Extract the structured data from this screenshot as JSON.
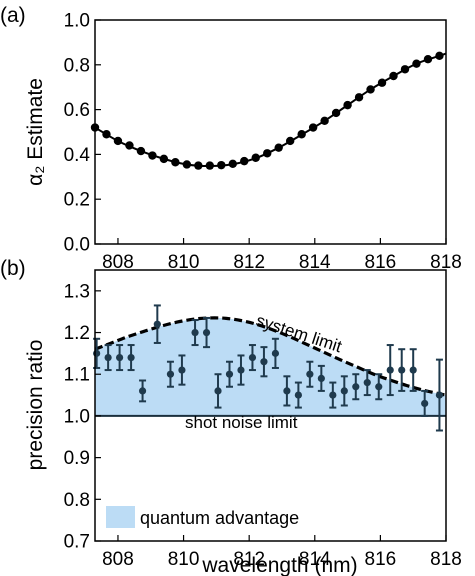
{
  "chart_data": [
    {
      "panel": "(a)",
      "type": "line",
      "ylabel": "α₂ Estimate",
      "xlim": [
        807.3,
        818.0
      ],
      "ylim": [
        0.0,
        1.0
      ],
      "yticks": [
        0.0,
        0.2,
        0.4,
        0.6,
        0.8,
        1.0
      ],
      "ytick_labels": [
        "0.0",
        "0.2",
        "0.4",
        "0.6",
        "0.8",
        "1.0"
      ],
      "xticks": [
        808,
        810,
        812,
        814,
        816,
        818
      ],
      "xtick_labels": [
        "808",
        "810",
        "812",
        "814",
        "816",
        "818"
      ],
      "grid": false,
      "series": [
        {
          "kind": "points",
          "x": [
            807.3,
            807.65,
            808.0,
            808.35,
            808.7,
            809.05,
            809.4,
            809.75,
            810.1,
            810.45,
            810.8,
            811.15,
            811.5,
            811.85,
            812.2,
            812.55,
            812.9,
            813.25,
            813.6,
            813.95,
            814.3,
            814.65,
            815.0,
            815.35,
            815.7,
            816.05,
            816.4,
            816.75,
            817.1,
            817.45,
            817.8
          ],
          "y": [
            0.52,
            0.49,
            0.46,
            0.44,
            0.415,
            0.395,
            0.38,
            0.365,
            0.355,
            0.35,
            0.35,
            0.352,
            0.358,
            0.37,
            0.385,
            0.405,
            0.43,
            0.46,
            0.49,
            0.52,
            0.55,
            0.585,
            0.62,
            0.655,
            0.69,
            0.72,
            0.75,
            0.78,
            0.805,
            0.825,
            0.84
          ]
        },
        {
          "kind": "fit-curve",
          "x": [
            807.3,
            808.0,
            808.7,
            809.4,
            810.1,
            810.8,
            811.5,
            812.2,
            812.9,
            813.6,
            814.3,
            815.0,
            815.7,
            816.4,
            817.1,
            817.8,
            818.0
          ],
          "y": [
            0.52,
            0.46,
            0.415,
            0.38,
            0.355,
            0.348,
            0.356,
            0.383,
            0.43,
            0.488,
            0.55,
            0.62,
            0.69,
            0.75,
            0.805,
            0.84,
            0.85
          ]
        }
      ]
    },
    {
      "panel": "(b)",
      "type": "scatter",
      "xlabel": "wavelength (nm)",
      "ylabel": "precision ratio",
      "xlim": [
        807.3,
        818.0
      ],
      "ylim": [
        0.7,
        1.35
      ],
      "yticks": [
        0.7,
        0.8,
        0.9,
        1.0,
        1.1,
        1.2,
        1.3
      ],
      "ytick_labels": [
        "0.7",
        "0.8",
        "0.9",
        "1.0",
        "1.1",
        "1.2",
        "1.3"
      ],
      "xticks": [
        808,
        810,
        812,
        814,
        816,
        818
      ],
      "xtick_labels": [
        "808",
        "810",
        "812",
        "814",
        "816",
        "818"
      ],
      "grid": false,
      "system_limit": {
        "label": "system limit",
        "x": [
          807.3,
          807.8,
          808.3,
          808.8,
          809.3,
          809.8,
          810.3,
          810.8,
          811.3,
          811.8,
          812.3,
          812.8,
          813.3,
          813.8,
          814.3,
          814.8,
          815.3,
          815.8,
          816.3,
          816.8,
          817.3,
          817.8,
          818.0
        ],
        "y": [
          1.16,
          1.175,
          1.19,
          1.203,
          1.215,
          1.225,
          1.232,
          1.235,
          1.234,
          1.228,
          1.218,
          1.204,
          1.188,
          1.17,
          1.152,
          1.134,
          1.117,
          1.1,
          1.086,
          1.073,
          1.062,
          1.053,
          1.05
        ]
      },
      "shot_noise_limit": {
        "label": "shot noise limit",
        "y": 1.0
      },
      "legend": {
        "label": "quantum advantage",
        "color": "#bcdcf5",
        "position": "lower-left"
      },
      "measured": {
        "color": "#1f3a4d",
        "x": [
          807.35,
          807.7,
          808.05,
          808.4,
          808.75,
          809.2,
          809.6,
          809.95,
          810.35,
          810.7,
          811.05,
          811.4,
          811.75,
          812.1,
          812.45,
          812.8,
          813.15,
          813.5,
          813.85,
          814.2,
          814.55,
          814.9,
          815.25,
          815.6,
          815.95,
          816.3,
          816.65,
          817.0,
          817.35,
          817.8
        ],
        "y": [
          1.15,
          1.14,
          1.14,
          1.14,
          1.06,
          1.22,
          1.1,
          1.11,
          1.2,
          1.2,
          1.06,
          1.1,
          1.11,
          1.14,
          1.13,
          1.15,
          1.06,
          1.05,
          1.1,
          1.09,
          1.05,
          1.06,
          1.07,
          1.08,
          1.07,
          1.11,
          1.11,
          1.11,
          1.03,
          1.05
        ],
        "err": [
          0.035,
          0.03,
          0.03,
          0.03,
          0.025,
          0.045,
          0.03,
          0.035,
          0.03,
          0.035,
          0.04,
          0.03,
          0.035,
          0.03,
          0.035,
          0.035,
          0.035,
          0.03,
          0.03,
          0.03,
          0.03,
          0.035,
          0.03,
          0.03,
          0.03,
          0.06,
          0.05,
          0.05,
          0.03,
          0.085
        ]
      }
    }
  ]
}
